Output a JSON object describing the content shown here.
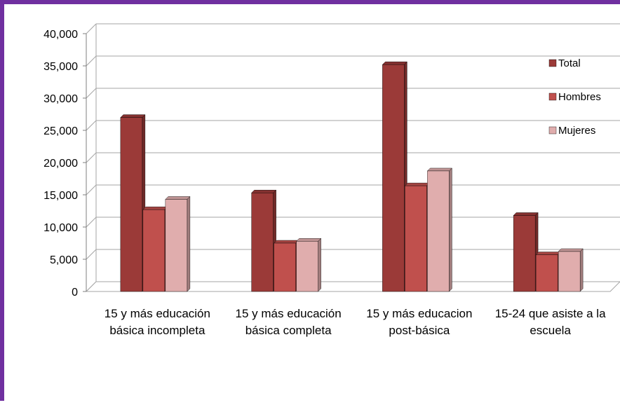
{
  "chart_data": {
    "type": "bar",
    "categories": [
      [
        "15 y más educación",
        "básica incompleta"
      ],
      [
        "15 y más educación",
        "básica completa"
      ],
      [
        "15 y más educacion",
        "post-básica"
      ],
      [
        "15-24 que asiste a la",
        "escuela"
      ]
    ],
    "series": [
      {
        "name": "Total",
        "values": [
          27000,
          15300,
          35200,
          11800
        ]
      },
      {
        "name": "Hombres",
        "values": [
          12700,
          7500,
          16400,
          5700
        ]
      },
      {
        "name": "Mujeres",
        "values": [
          14300,
          7800,
          18700,
          6200
        ]
      }
    ],
    "ylim": [
      0,
      40000
    ],
    "y_ticks": [
      "0",
      "5,000",
      "10,000",
      "15,000",
      "20,000",
      "25,000",
      "30,000",
      "35,000",
      "40,000"
    ],
    "grid": true,
    "legend": "right",
    "style": "3d-clustered-column"
  },
  "colors": {
    "frame_border": "#7030a0",
    "total": "#9b3a38",
    "hombres": "#c0504d",
    "mujeres": "#e0adad"
  }
}
